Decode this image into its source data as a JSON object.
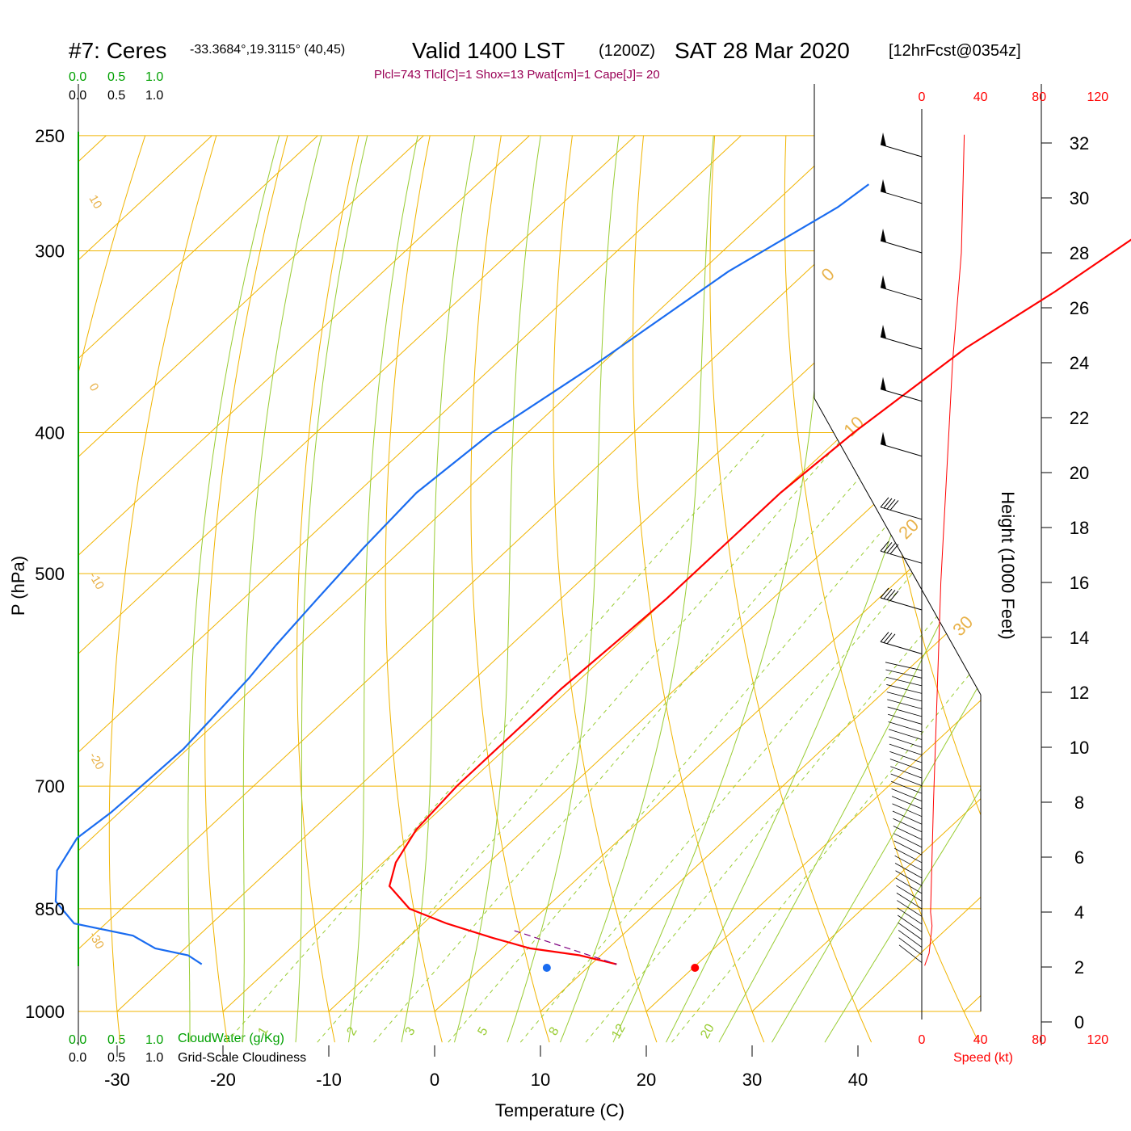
{
  "title": {
    "station": "#7: Ceres",
    "coords": "-33.3684°,19.3115° (40,45)",
    "valid": "Valid 1400 LST",
    "zulu": "(1200Z)",
    "date": "SAT 28 Mar 2020",
    "forecast": "[12hrFcst@0354z]"
  },
  "indices": "Plcl=743 Tlcl[C]=1 Shox=13 Pwat[cm]=1 Cape[J]= 20",
  "legend": {
    "cloud_scale": [
      "0.0",
      "0.5",
      "1.0"
    ],
    "cloudwater_label": "CloudWater (g/Kg)",
    "cloudiness_label": "Grid-Scale Cloudiness"
  },
  "colors": {
    "temperature": "#ff0000",
    "dewpoint": "#1a6cf0",
    "isobar": "#f0b400",
    "adiabat": "#99cc33",
    "mixing_ratio": "#99cc33",
    "wind_speed": "#ff0000",
    "cloud": "#00a000",
    "parcel": "#800080"
  },
  "chart_data": {
    "type": "line",
    "xlabel": "Temperature (C)",
    "ylabel": "P (hPa)",
    "y2label": "Height (1000 Feet)",
    "speed_label": "Speed (kt)",
    "x_ticks": [
      -30,
      -20,
      -10,
      0,
      10,
      20,
      30,
      40
    ],
    "p_ticks": [
      250,
      300,
      400,
      500,
      700,
      850,
      1000
    ],
    "height_ticks": [
      0,
      2,
      4,
      6,
      8,
      10,
      12,
      14,
      16,
      18,
      20,
      22,
      24,
      26,
      28,
      30,
      32
    ],
    "speed_ticks": [
      0,
      40,
      80,
      120
    ],
    "dry_adiabat_labels": [
      "10",
      "0",
      "-10",
      "-20",
      "-30",
      "0",
      "10",
      "20",
      "30"
    ],
    "mixing_ratio_labels": [
      "1",
      "2",
      "3",
      "5",
      "8",
      "12",
      "20"
    ],
    "surface_temperature_c": 24.6,
    "surface_dewpoint_c": 10.6,
    "series": [
      {
        "name": "Temperature",
        "points": [
          [
            -11.6,
            270
          ],
          [
            -12.2,
            290
          ],
          [
            -14.5,
            320
          ],
          [
            -17.2,
            350
          ],
          [
            -19.2,
            400
          ],
          [
            -20.0,
            440
          ],
          [
            -20.0,
            480
          ],
          [
            -20.0,
            520
          ],
          [
            -20.4,
            560
          ],
          [
            -20.8,
            600
          ],
          [
            -20.8,
            650
          ],
          [
            -20.8,
            700
          ],
          [
            -20.2,
            750
          ],
          [
            -18.8,
            790
          ],
          [
            -17.0,
            820
          ],
          [
            -12.8,
            850
          ],
          [
            -7.8,
            870
          ],
          [
            -2.0,
            890
          ],
          [
            2.6,
            905
          ],
          [
            8.0,
            915
          ],
          [
            12.4,
            928
          ]
        ]
      },
      {
        "name": "Dewpoint",
        "points": [
          [
            -43.0,
            270
          ],
          [
            -43.6,
            280
          ],
          [
            -47.4,
            310
          ],
          [
            -50.6,
            360
          ],
          [
            -53.4,
            400
          ],
          [
            -54.4,
            440
          ],
          [
            -53.8,
            480
          ],
          [
            -53.0,
            520
          ],
          [
            -52.2,
            560
          ],
          [
            -51.4,
            590
          ],
          [
            -50.8,
            630
          ],
          [
            -50.4,
            660
          ],
          [
            -50.6,
            700
          ],
          [
            -50.8,
            730
          ],
          [
            -51.4,
            760
          ],
          [
            -50.0,
            800
          ],
          [
            -47.0,
            840
          ],
          [
            -43.0,
            870
          ],
          [
            -36.2,
            887
          ],
          [
            -32.8,
            905
          ],
          [
            -29.0,
            915
          ],
          [
            -26.8,
            928
          ]
        ]
      }
    ],
    "wind_speed_profile_kt": [
      [
        29,
        32.3
      ],
      [
        27,
        28
      ],
      [
        21,
        24
      ],
      [
        17,
        20
      ],
      [
        13,
        16
      ],
      [
        10.5,
        12
      ],
      [
        8,
        8
      ],
      [
        6.5,
        5
      ],
      [
        6,
        4
      ],
      [
        7,
        3.5
      ],
      [
        5,
        2.5
      ],
      [
        2,
        2.05
      ]
    ],
    "wind_barbs": [
      {
        "h": 31.5,
        "speed_kt": 50
      },
      {
        "h": 29.8,
        "speed_kt": 50
      },
      {
        "h": 28.0,
        "speed_kt": 50
      },
      {
        "h": 26.3,
        "speed_kt": 50
      },
      {
        "h": 24.5,
        "speed_kt": 50
      },
      {
        "h": 22.6,
        "speed_kt": 50
      },
      {
        "h": 20.6,
        "speed_kt": 50
      },
      {
        "h": 18.3,
        "speed_kt": 40
      },
      {
        "h": 16.7,
        "speed_kt": 40
      },
      {
        "h": 15.0,
        "speed_kt": 40
      },
      {
        "h": 13.4,
        "speed_kt": 30
      }
    ]
  }
}
